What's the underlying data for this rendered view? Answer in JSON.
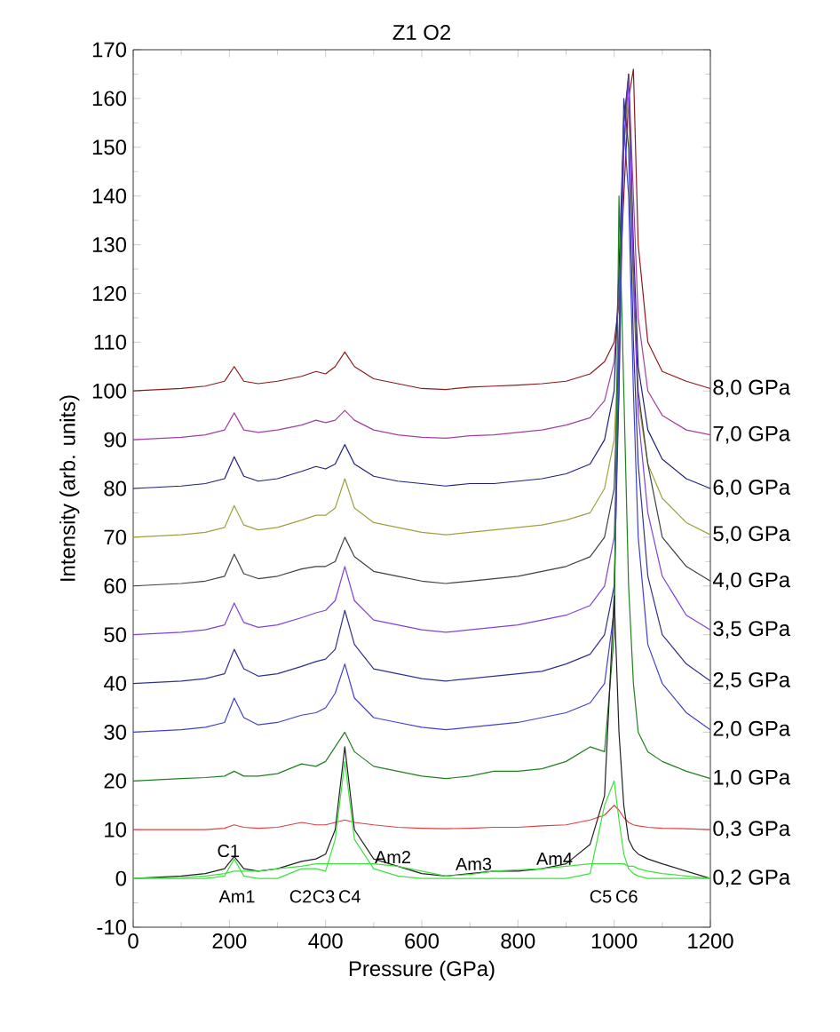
{
  "chart_data": {
    "type": "line",
    "title": "Z1 O2",
    "xlabel": "Pressure (GPa)",
    "ylabel": "Intensity (arb. units)",
    "xlim": [
      0,
      1200
    ],
    "ylim": [
      -10,
      170
    ],
    "xticks": [
      0,
      200,
      400,
      600,
      800,
      1000,
      1200
    ],
    "yticks": [
      -10,
      0,
      10,
      20,
      30,
      40,
      50,
      60,
      70,
      80,
      90,
      100,
      110,
      120,
      130,
      140,
      150,
      160,
      170
    ],
    "x": [
      0,
      100,
      150,
      190,
      210,
      230,
      260,
      300,
      350,
      380,
      400,
      420,
      440,
      460,
      500,
      550,
      600,
      650,
      700,
      750,
      800,
      850,
      900,
      950,
      980,
      1000,
      1010,
      1020,
      1030,
      1040,
      1050,
      1070,
      1100,
      1150,
      1200
    ],
    "grid": false,
    "marker": "none",
    "line_style": "solid",
    "series": [
      {
        "name": "8,0 GPa",
        "color": "#8b1a1a",
        "values": [
          100,
          100.5,
          101,
          102,
          105,
          102,
          101.5,
          102,
          103,
          104,
          103.5,
          105,
          108,
          105,
          102.5,
          101.5,
          100.5,
          100.3,
          100.8,
          101,
          101.2,
          101.5,
          102,
          103.5,
          106,
          110,
          118,
          140,
          160,
          166,
          130,
          110,
          104,
          102,
          100.5
        ]
      },
      {
        "name": "7,0 GPa",
        "color": "#a040a0",
        "values": [
          90,
          90.5,
          91,
          92,
          95.5,
          92,
          91.5,
          92,
          93,
          94,
          93.5,
          94,
          96,
          94,
          92,
          91,
          90.5,
          90.3,
          90.8,
          91,
          91.5,
          92,
          93,
          94.5,
          98,
          106,
          120,
          150,
          165,
          140,
          115,
          100,
          95,
          92,
          91
        ]
      },
      {
        "name": "6,0 GPa",
        "color": "#202080",
        "values": [
          80,
          80.5,
          81,
          82,
          86.5,
          82.5,
          81.5,
          82,
          83.5,
          84.5,
          84,
          85,
          89,
          85,
          82.5,
          81.5,
          81,
          80.5,
          81,
          81,
          81.5,
          82,
          83,
          85,
          90,
          100,
          125,
          155,
          164,
          130,
          105,
          92,
          86,
          82,
          80
        ]
      },
      {
        "name": "5,0 GPa",
        "color": "#a0a040",
        "values": [
          70,
          70.5,
          71,
          72,
          76.5,
          72.5,
          71.5,
          72,
          73.5,
          74.5,
          74.5,
          76,
          82,
          76,
          73,
          72,
          71,
          70.5,
          71,
          71.5,
          72,
          72.5,
          73.5,
          75,
          80,
          90,
          110,
          150,
          160,
          120,
          98,
          85,
          78,
          73,
          70.5
        ]
      },
      {
        "name": "4,0 GPa",
        "color": "#404040",
        "values": [
          60,
          60.5,
          61,
          62,
          66.5,
          62.5,
          61.5,
          62,
          63.5,
          64,
          64,
          65,
          70,
          66,
          63,
          62,
          61,
          60.5,
          61,
          61.5,
          62,
          63,
          64,
          66,
          70,
          80,
          110,
          155,
          165,
          125,
          100,
          85,
          70,
          64,
          61
        ]
      },
      {
        "name": "3,5 GPa",
        "color": "#8040e0",
        "values": [
          50,
          50.5,
          51,
          52,
          56.5,
          52.5,
          51.5,
          52,
          53.5,
          54.5,
          55,
          57,
          64,
          57,
          53,
          52,
          51,
          50.5,
          51,
          51.5,
          52,
          53,
          54,
          56,
          60,
          70,
          100,
          150,
          164,
          125,
          95,
          75,
          62,
          54,
          51
        ]
      },
      {
        "name": "2,5 GPa",
        "color": "#303090",
        "values": [
          40,
          40.5,
          41,
          42,
          47,
          43,
          41.5,
          42,
          43.5,
          44.5,
          45,
          47,
          55,
          48,
          43,
          42,
          41,
          40.5,
          41,
          41.5,
          42,
          42.5,
          44,
          46,
          50,
          60,
          100,
          160,
          150,
          110,
          85,
          62,
          50,
          44,
          40.5
        ]
      },
      {
        "name": "2,0 GPa",
        "color": "#4040d0",
        "values": [
          30,
          30.5,
          31,
          32,
          37,
          33,
          31.5,
          32,
          33.5,
          34,
          35,
          38,
          44,
          37,
          33,
          32,
          31,
          30.5,
          31,
          31.5,
          32,
          33,
          34,
          36,
          40,
          55,
          110,
          155,
          140,
          100,
          70,
          48,
          40,
          34,
          30.5
        ]
      },
      {
        "name": "1,0 GPa",
        "color": "#208020",
        "values": [
          20,
          20.5,
          20.7,
          21,
          22,
          21,
          21,
          21.5,
          23.5,
          23,
          24,
          27,
          30,
          26,
          23,
          22,
          21,
          20.5,
          21,
          22,
          22,
          22.5,
          24,
          27,
          26,
          50,
          140,
          100,
          60,
          40,
          30,
          26,
          24,
          22,
          20.5
        ]
      },
      {
        "name": "0,3 GPa",
        "color": "#e04040",
        "values": [
          10,
          10,
          10,
          10.3,
          11,
          10.5,
          10.3,
          10.5,
          11.5,
          11,
          11,
          11.5,
          12,
          11.5,
          11,
          10.5,
          10.3,
          10.2,
          10.3,
          10.5,
          10.5,
          10.8,
          11,
          12,
          13,
          15,
          14,
          12.5,
          11.5,
          11,
          10.8,
          10.5,
          10.3,
          10.2,
          10
        ]
      },
      {
        "name": "0,2 GPa",
        "color": "#202020",
        "values": [
          0,
          0.5,
          1,
          2,
          4.5,
          2,
          1.5,
          2,
          3.5,
          4,
          5,
          10,
          27,
          10,
          4,
          2.5,
          1,
          0.5,
          1,
          1.5,
          1.5,
          2,
          3,
          7,
          17,
          58,
          30,
          15,
          8,
          6,
          5,
          4,
          3,
          1.5,
          0
        ]
      },
      {
        "color": "#40e040",
        "values": [
          0,
          0,
          0,
          0.5,
          4,
          0.5,
          0,
          0,
          2,
          2,
          1.5,
          8,
          24,
          8,
          2,
          0.5,
          0,
          0,
          0,
          0,
          0,
          0,
          0,
          1,
          15,
          20,
          12,
          5,
          2,
          1,
          0.5,
          0,
          0,
          0,
          0
        ]
      },
      {
        "color": "#40e040",
        "values": [
          0,
          0.2,
          0.5,
          1,
          1.5,
          1.5,
          1.5,
          2,
          2.5,
          3,
          3,
          3,
          3,
          3,
          3,
          2.5,
          1.5,
          0.5,
          0.8,
          1.5,
          1.8,
          2,
          2.5,
          3,
          3,
          3,
          3,
          3,
          2.5,
          2.5,
          2,
          1.5,
          1,
          0.5,
          0
        ]
      }
    ],
    "annotations": [
      "C1",
      "Am1",
      "C2",
      "C3",
      "C4",
      "Am2",
      "Am3",
      "Am4",
      "C5",
      "C6"
    ]
  }
}
